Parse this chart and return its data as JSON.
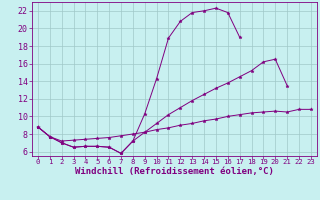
{
  "bg_color": "#c8f0f0",
  "line_color": "#800080",
  "grid_color": "#a0c8c8",
  "xlabel": "Windchill (Refroidissement éolien,°C)",
  "xlabel_fontsize": 6.5,
  "xtick_fontsize": 5.2,
  "ytick_fontsize": 6.0,
  "xlim": [
    -0.5,
    23.5
  ],
  "ylim": [
    5.5,
    23.0
  ],
  "yticks": [
    6,
    8,
    10,
    12,
    14,
    16,
    18,
    20,
    22
  ],
  "xticks": [
    0,
    1,
    2,
    3,
    4,
    5,
    6,
    7,
    8,
    9,
    10,
    11,
    12,
    13,
    14,
    15,
    16,
    17,
    18,
    19,
    20,
    21,
    22,
    23
  ],
  "c1_x": [
    0,
    1,
    2,
    3,
    4,
    5,
    6,
    7,
    8,
    9,
    10,
    11,
    12,
    13,
    14,
    15,
    16,
    17
  ],
  "c1_y": [
    8.8,
    7.7,
    7.0,
    6.5,
    6.6,
    6.6,
    6.5,
    5.8,
    7.2,
    10.3,
    14.3,
    18.9,
    20.8,
    21.8,
    22.0,
    22.3,
    21.8,
    19.0
  ],
  "c2_x": [
    0,
    1,
    2,
    3,
    4,
    5,
    6,
    7,
    8,
    9,
    10,
    11,
    12,
    13,
    14,
    15,
    16,
    17,
    18,
    19,
    20,
    21
  ],
  "c2_y": [
    8.8,
    7.7,
    7.0,
    6.5,
    6.6,
    6.6,
    6.5,
    5.8,
    7.2,
    8.2,
    9.2,
    10.2,
    11.0,
    11.8,
    12.5,
    13.2,
    13.8,
    14.5,
    15.2,
    16.2,
    16.5,
    13.5
  ],
  "c3_x": [
    0,
    1,
    2,
    3,
    4,
    5,
    6,
    7,
    8,
    9,
    10,
    11,
    12,
    13,
    14,
    15,
    16,
    17,
    18,
    19,
    20,
    21,
    22,
    23
  ],
  "c3_y": [
    8.8,
    7.7,
    7.2,
    7.3,
    7.4,
    7.5,
    7.6,
    7.8,
    8.0,
    8.2,
    8.5,
    8.7,
    9.0,
    9.2,
    9.5,
    9.7,
    10.0,
    10.2,
    10.4,
    10.5,
    10.6,
    10.5,
    10.8,
    10.8
  ]
}
